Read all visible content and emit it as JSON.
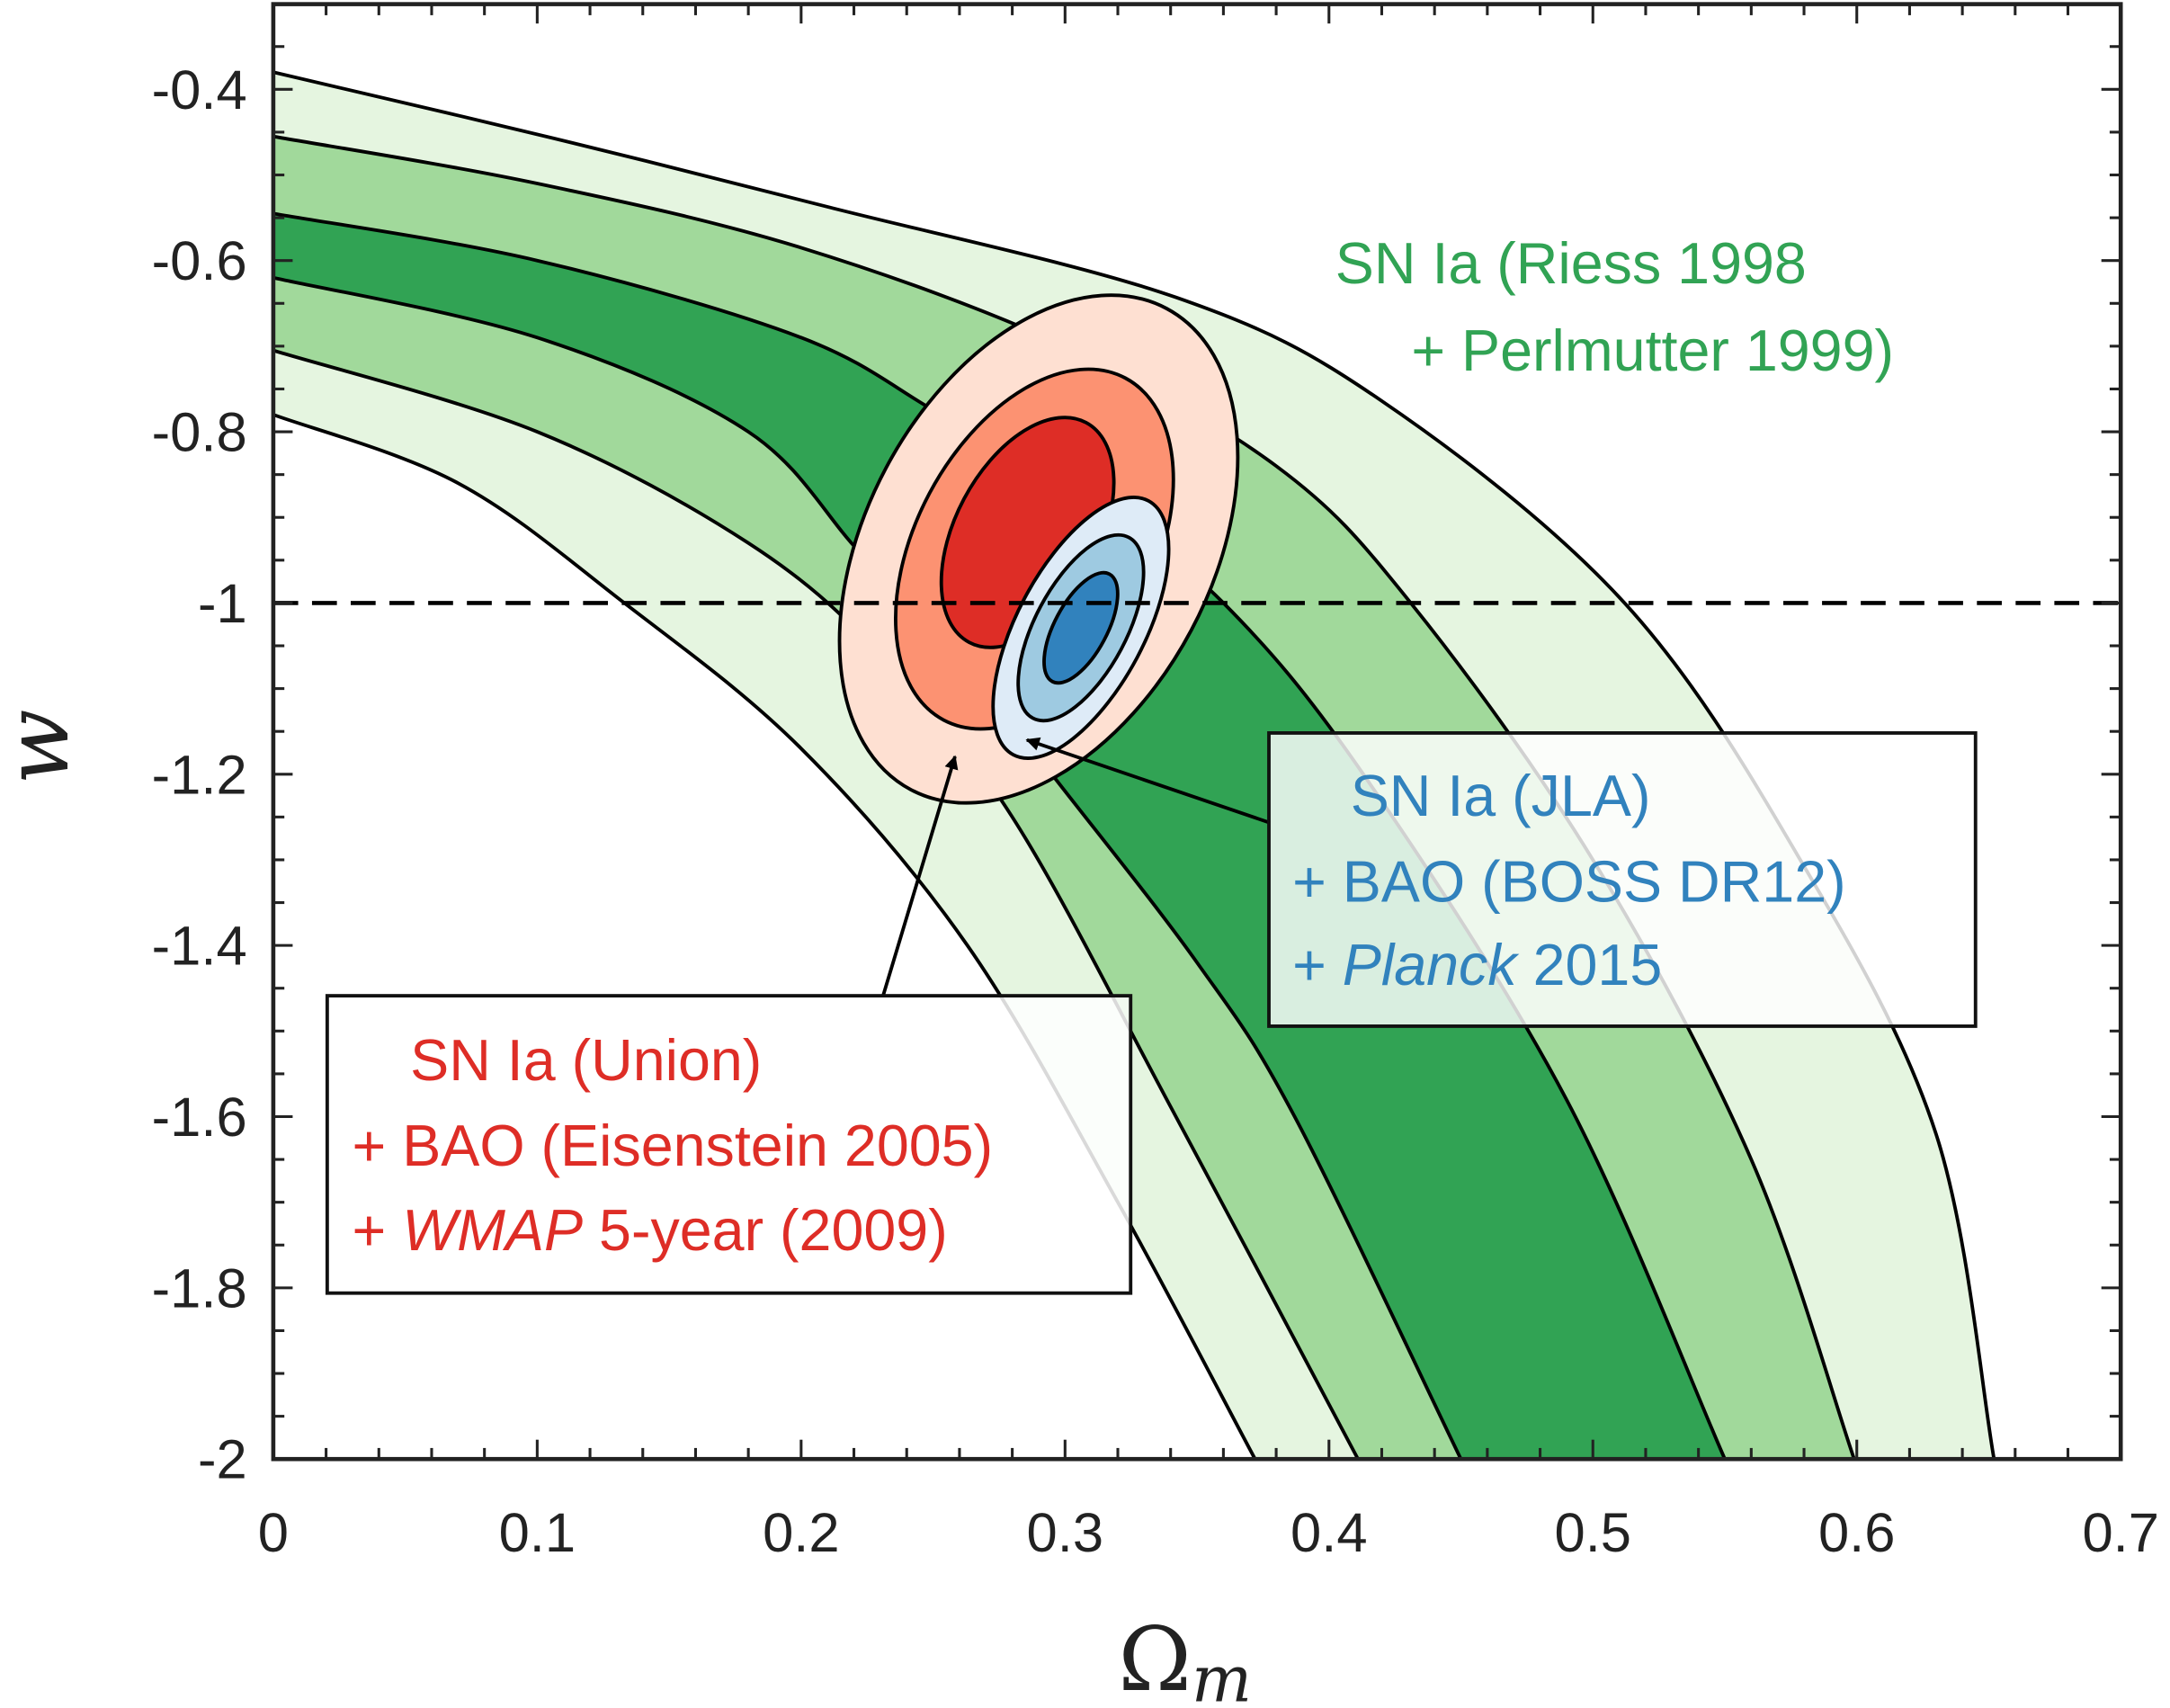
{
  "chart_data": {
    "type": "contour",
    "xlabel_main": "Ω",
    "xlabel_sub": "m",
    "ylabel": "w",
    "xlim": [
      0,
      0.7
    ],
    "ylim": [
      -2,
      -0.3
    ],
    "xticks": [
      0,
      0.1,
      0.2,
      0.3,
      0.4,
      0.5,
      0.6,
      0.7
    ],
    "xtick_labels": [
      "0",
      "0.1",
      "0.2",
      "0.3",
      "0.4",
      "0.5",
      "0.6",
      "0.7"
    ],
    "yticks": [
      -0.4,
      -0.6,
      -0.8,
      -1,
      -1.2,
      -1.4,
      -1.6,
      -1.8,
      -2
    ],
    "ytick_labels": [
      "-0.4",
      "-0.6",
      "-0.8",
      "-1",
      "-1.2",
      "-1.4",
      "-1.6",
      "-1.8",
      "-2"
    ],
    "reference_line": {
      "w": -1,
      "style": "dashed"
    },
    "sn_riess_perlmutter_boundaries": [
      [
        [
          0,
          -0.38
        ],
        [
          0.106,
          -0.457
        ],
        [
          0.211,
          -0.538
        ],
        [
          0.342,
          -0.643
        ],
        [
          0.42,
          -0.764
        ],
        [
          0.512,
          -1.0
        ],
        [
          0.578,
          -1.297
        ],
        [
          0.63,
          -1.62
        ],
        [
          0.652,
          -2.0
        ]
      ],
      [
        [
          0,
          -0.455
        ],
        [
          0.1,
          -0.51
        ],
        [
          0.2,
          -0.585
        ],
        [
          0.3,
          -0.7
        ],
        [
          0.38,
          -0.84
        ],
        [
          0.431,
          -1.0
        ],
        [
          0.5,
          -1.3
        ],
        [
          0.56,
          -1.65
        ],
        [
          0.599,
          -2.0
        ]
      ],
      [
        [
          0,
          -0.545
        ],
        [
          0.1,
          -0.6
        ],
        [
          0.2,
          -0.69
        ],
        [
          0.253,
          -0.78
        ],
        [
          0.31,
          -0.88
        ],
        [
          0.36,
          -1.0
        ],
        [
          0.413,
          -1.2
        ],
        [
          0.49,
          -1.58
        ],
        [
          0.55,
          -2.0
        ]
      ],
      [
        [
          0,
          -0.62
        ],
        [
          0.1,
          -0.69
        ],
        [
          0.18,
          -0.8
        ],
        [
          0.222,
          -0.94
        ],
        [
          0.26,
          -1.06
        ],
        [
          0.295,
          -1.2
        ],
        [
          0.35,
          -1.42
        ],
        [
          0.387,
          -1.6
        ],
        [
          0.45,
          -2.0
        ]
      ],
      [
        [
          0,
          -0.705
        ],
        [
          0.1,
          -0.8
        ],
        [
          0.18,
          -0.93
        ],
        [
          0.23,
          -1.06
        ],
        [
          0.28,
          -1.25
        ],
        [
          0.342,
          -1.6
        ],
        [
          0.411,
          -2.0
        ]
      ],
      [
        [
          0,
          -0.78
        ],
        [
          0.07,
          -0.86
        ],
        [
          0.133,
          -1.0
        ],
        [
          0.2,
          -1.17
        ],
        [
          0.263,
          -1.4
        ],
        [
          0.32,
          -1.7
        ],
        [
          0.372,
          -2.0
        ]
      ]
    ],
    "union_wmap_center": [
      0.29,
      -0.937
    ],
    "jla_planck_center": [
      0.306,
      -1.029
    ],
    "colors": {
      "green": [
        "#e5f5e0",
        "#a1d99b",
        "#31a354"
      ],
      "red": [
        "#fee0d2",
        "#fc9272",
        "#de2d26"
      ],
      "blue": [
        "#deebf7",
        "#9ecae1",
        "#3182bd"
      ],
      "green_text": "#31a354",
      "red_text": "#de2d26",
      "blue_text": "#3182bd"
    }
  },
  "annotations": {
    "green": {
      "line1": "SN Ia (Riess 1998",
      "line2": "+ Perlmutter 1999)"
    },
    "blue": {
      "line1": "SN Ia (JLA)",
      "line2": "+ BAO (BOSS DR12)",
      "line3_prefix": "+ ",
      "line3_italic": "Planck",
      "line3_suffix": " 2015"
    },
    "red": {
      "line1": "SN Ia (Union)",
      "line2": "+ BAO (Eisenstein 2005)",
      "line3_prefix": "+ ",
      "line3_italic": "WMAP",
      "line3_suffix": " 5-year (2009)"
    }
  }
}
